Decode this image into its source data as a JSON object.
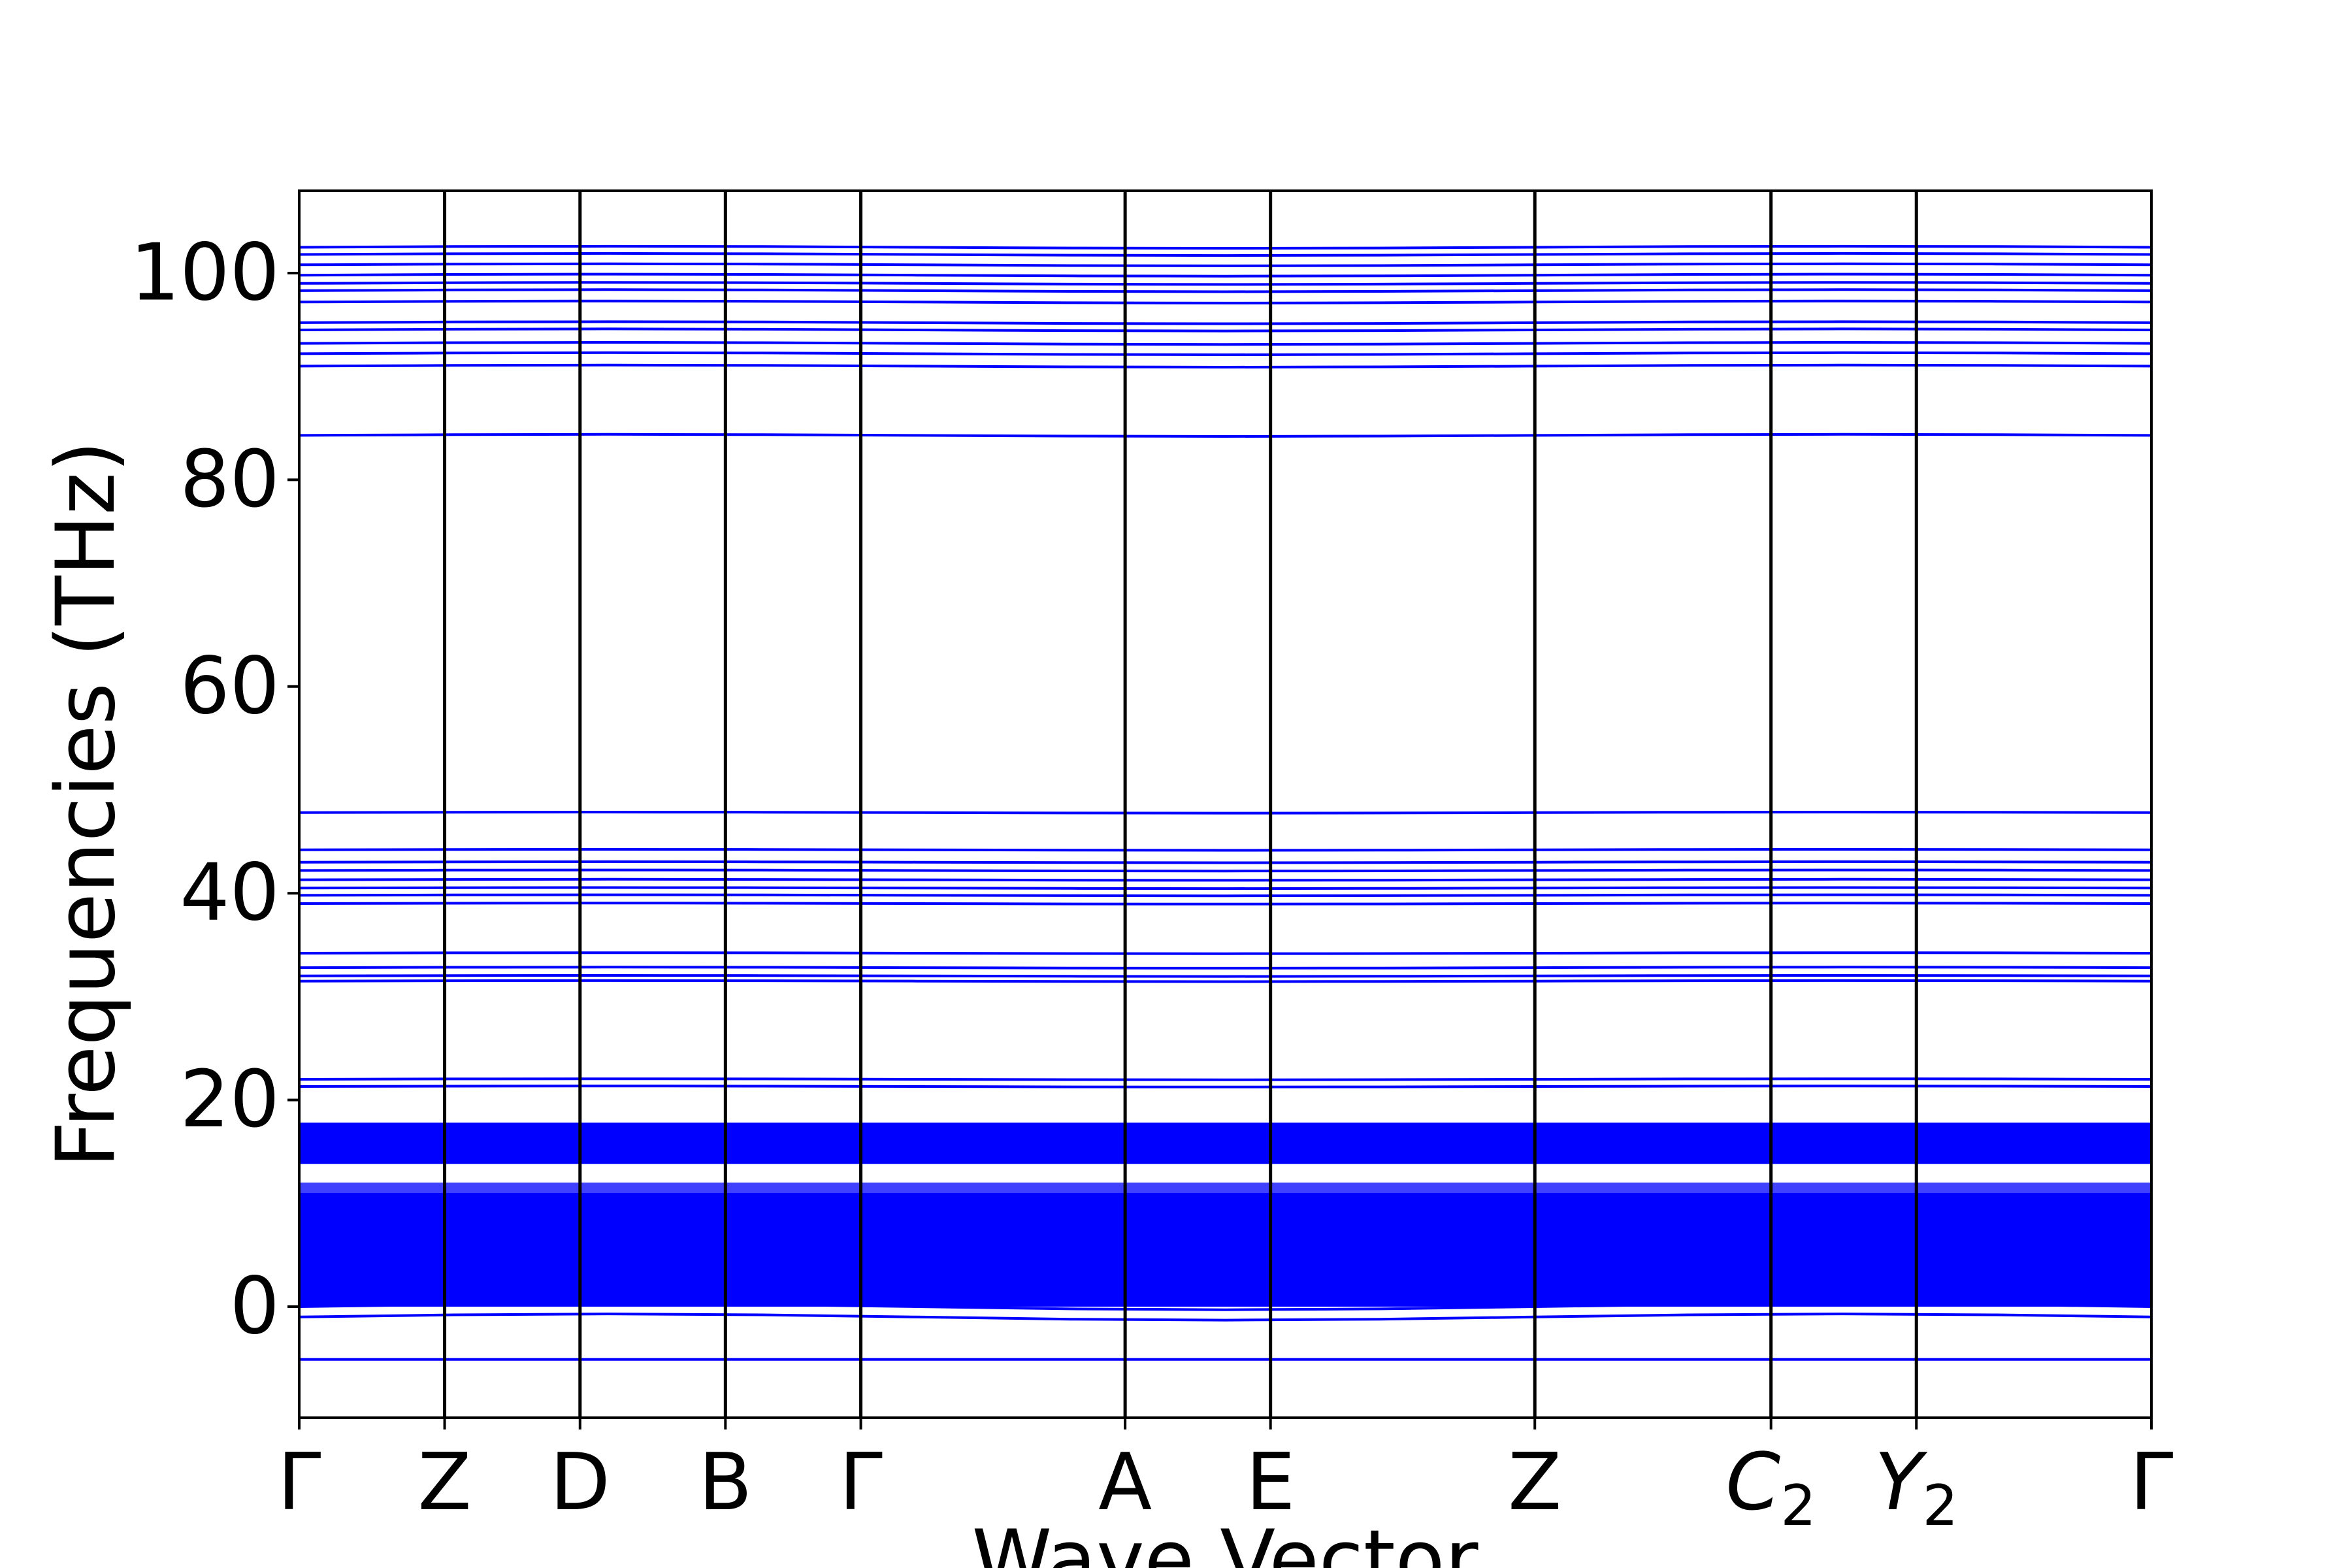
{
  "chart_data": {
    "type": "line",
    "title": "",
    "xlabel": "Wave Vector",
    "ylabel": "Frequencies (THz)",
    "ylim": [
      -10.5,
      108
    ],
    "yticks": [
      0,
      20,
      40,
      60,
      80,
      100
    ],
    "ytick_labels": [
      "0",
      "20",
      "40",
      "60",
      "80",
      "100"
    ],
    "grid": false,
    "legend": "none",
    "x_ticks": [
      {
        "label": "Γ",
        "sub": "",
        "italic": false,
        "pos": 0.0
      },
      {
        "label": "Z",
        "sub": "",
        "italic": false,
        "pos": 0.0785
      },
      {
        "label": "D",
        "sub": "",
        "italic": false,
        "pos": 0.1516
      },
      {
        "label": "B",
        "sub": "",
        "italic": false,
        "pos": 0.2301
      },
      {
        "label": "Γ",
        "sub": "",
        "italic": false,
        "pos": 0.3032
      },
      {
        "label": "A",
        "sub": "",
        "italic": false,
        "pos": 0.4459
      },
      {
        "label": "E",
        "sub": "",
        "italic": false,
        "pos": 0.5244
      },
      {
        "label": "Z",
        "sub": "",
        "italic": false,
        "pos": 0.6671
      },
      {
        "label": "C",
        "sub": "2",
        "italic": true,
        "pos": 0.7946
      },
      {
        "label": "Y",
        "sub": "2",
        "italic": true,
        "pos": 0.8731
      },
      {
        "label": "Γ",
        "sub": "",
        "italic": false,
        "pos": 1.0
      }
    ],
    "line_color": "#0000ff",
    "high_bands": [
      102.5,
      101.8,
      100.8,
      99.8,
      99.0,
      98.3,
      97.2,
      95.2,
      94.5,
      93.2,
      92.2,
      91.0,
      84.3,
      47.8,
      44.2,
      43.0,
      42.2,
      41.3,
      40.5,
      39.8,
      39.0,
      34.2,
      32.8,
      32.0,
      31.5,
      22.0,
      21.3
    ],
    "dense_band_ranges": [
      [
        13.8,
        17.8
      ],
      [
        0.0,
        12.0
      ]
    ],
    "negative_band": -5.1
  }
}
